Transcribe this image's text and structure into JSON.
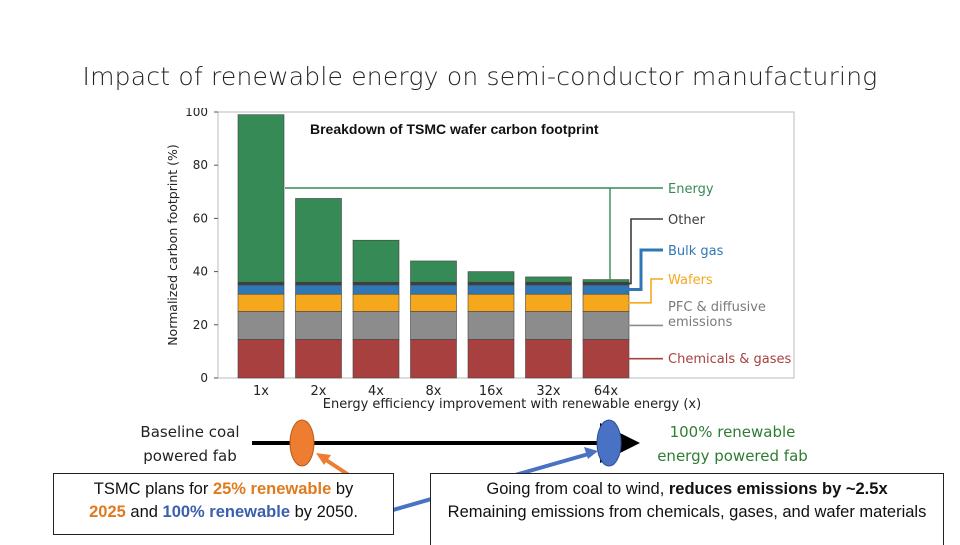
{
  "slide": {
    "title": "Impact of renewable energy on semi-conductor manufacturing"
  },
  "timeline": {
    "left_label_line1": "Baseline coal",
    "left_label_line2": "powered fab",
    "right_label_line1": "100% renewable",
    "right_label_line2": "energy powered fab",
    "left_marker_color": "#ee7d31",
    "right_marker_color": "#4a72c4"
  },
  "callouts": {
    "left": {
      "prefix": "TSMC plans for ",
      "pct1": "25% renewable",
      "mid1": " by ",
      "year1": "2025",
      "mid2": " and ",
      "pct2": "100% renewable",
      "mid3": " by 2050."
    },
    "right": {
      "prefix": "Going from coal to wind, ",
      "bold": "reduces emissions by ~2.5x",
      "line2": "Remaining emissions from chemicals, gases, and wafer materials"
    }
  },
  "chart_data": {
    "type": "bar",
    "stacked": true,
    "title": "Breakdown of TSMC wafer carbon footprint",
    "xlabel": "Energy efficiency improvement with renewable energy (x)",
    "ylabel": "Normalized carbon footprint (%)",
    "ylim": [
      0,
      100
    ],
    "yticks": [
      0,
      20,
      40,
      60,
      80,
      100
    ],
    "categories": [
      "1x",
      "2x",
      "4x",
      "8x",
      "16x",
      "32x",
      "64x"
    ],
    "series": [
      {
        "name": "Chemicals & gases",
        "color": "#a84040",
        "values": [
          14.5,
          14.5,
          14.5,
          14.5,
          14.5,
          14.5,
          14.5
        ]
      },
      {
        "name": "PFC & diffusive emissions",
        "color": "#8c8c8c",
        "values": [
          10.5,
          10.5,
          10.5,
          10.5,
          10.5,
          10.5,
          10.5
        ]
      },
      {
        "name": "Wafers",
        "color": "#f6a81c",
        "values": [
          6.5,
          6.5,
          6.5,
          6.5,
          6.5,
          6.5,
          6.5
        ]
      },
      {
        "name": "Bulk gas",
        "color": "#2f78b5",
        "values": [
          3.5,
          3.5,
          3.5,
          3.5,
          3.5,
          3.5,
          3.5
        ]
      },
      {
        "name": "Other",
        "color": "#3d3d3d",
        "values": [
          1,
          1,
          1,
          1,
          1,
          1,
          1
        ]
      },
      {
        "name": "Energy",
        "color": "#368a55",
        "values": [
          63,
          31.5,
          15.8,
          8,
          4,
          2,
          1
        ]
      }
    ],
    "legend": "right",
    "grid": false
  }
}
